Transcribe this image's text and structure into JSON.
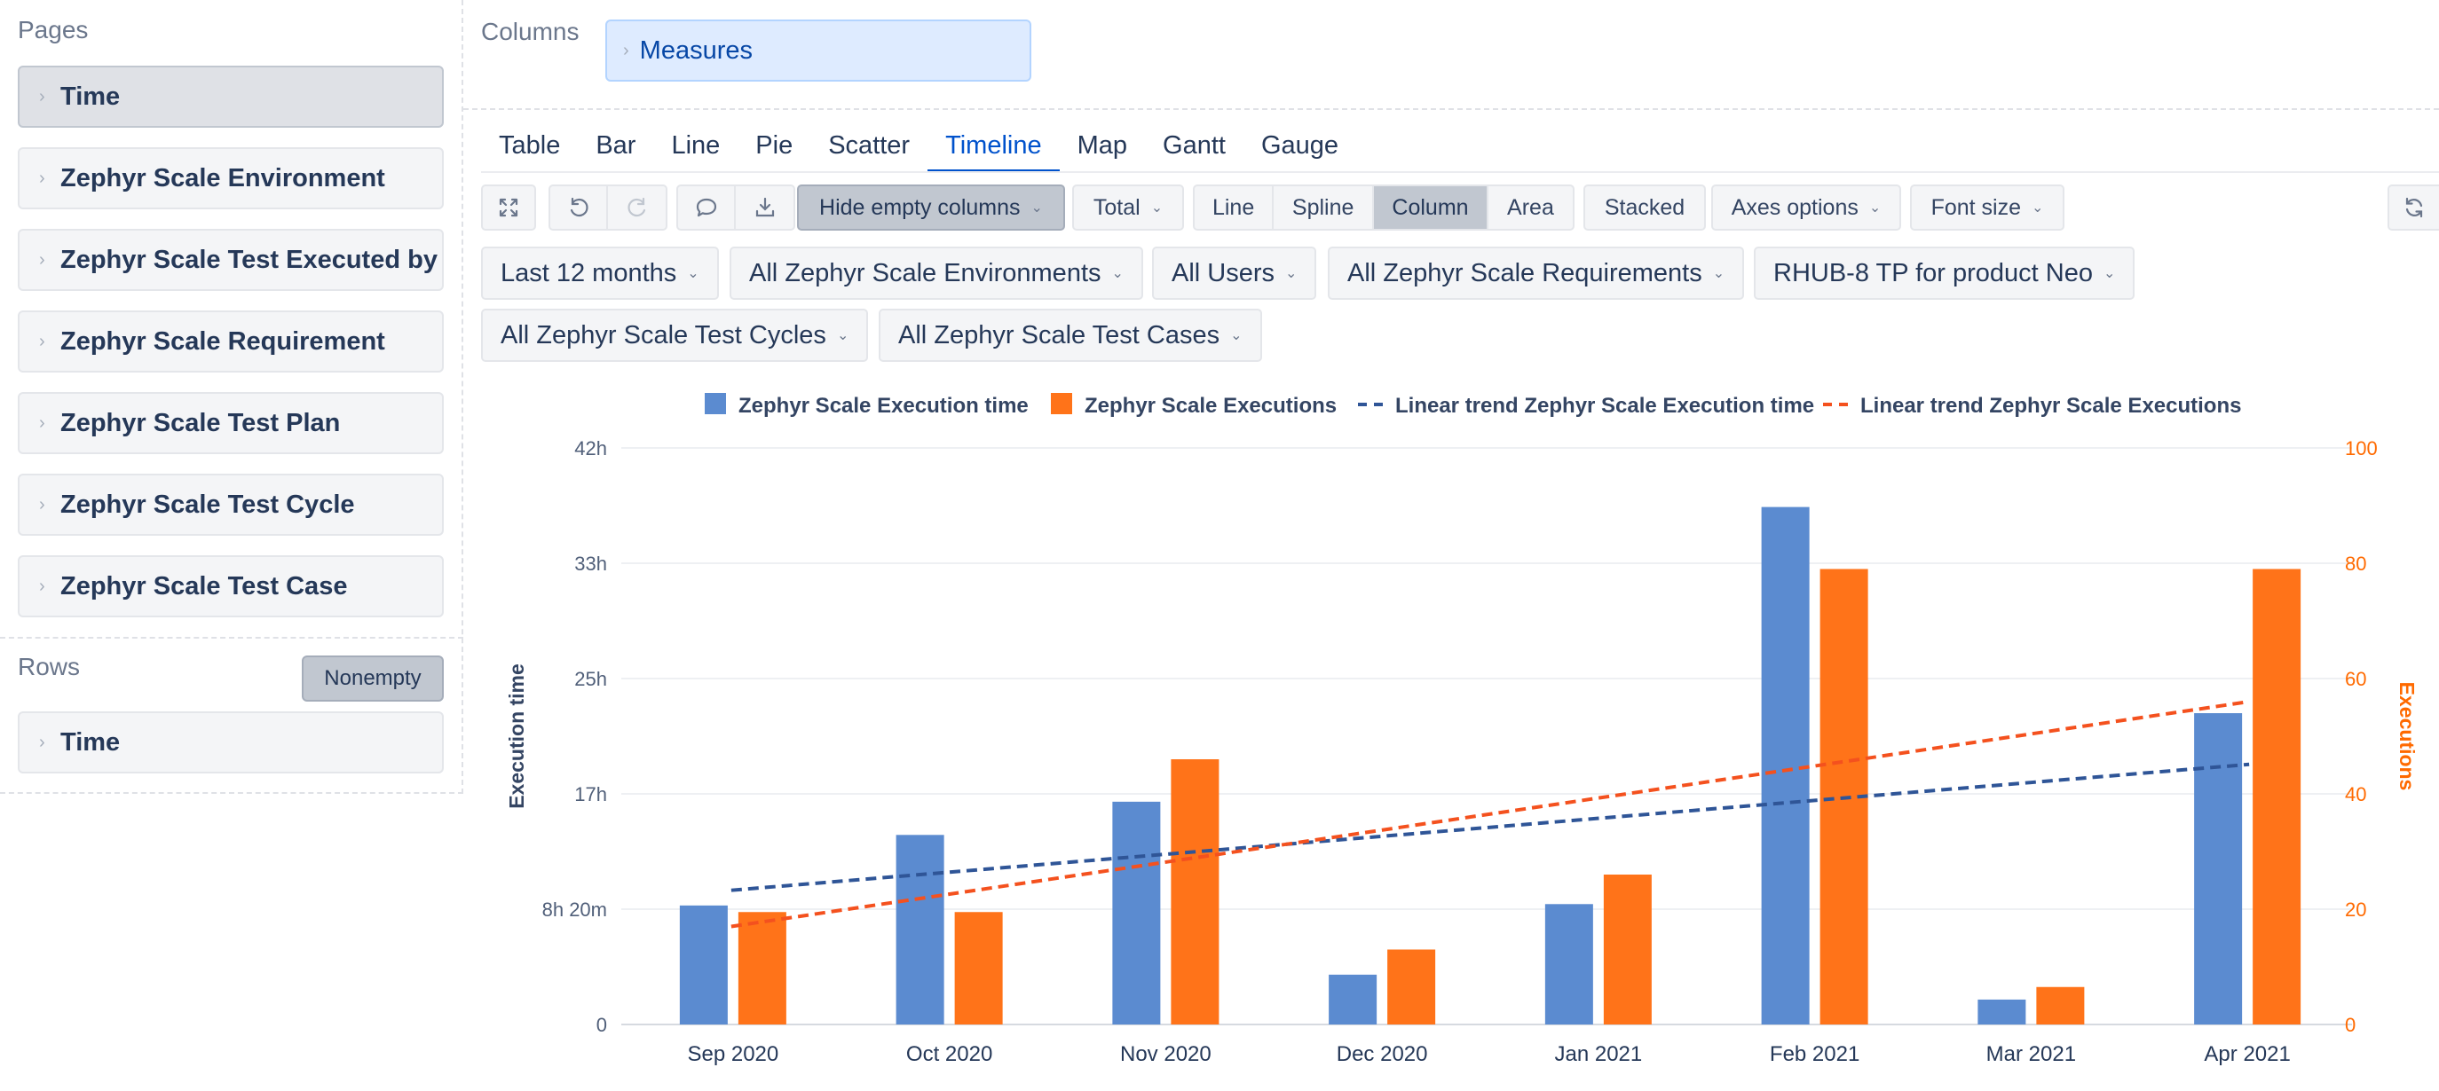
{
  "pages": {
    "label": "Pages",
    "items": [
      {
        "label": "Time"
      },
      {
        "label": "Zephyr Scale Environment"
      },
      {
        "label": "Zephyr Scale Test Executed by"
      },
      {
        "label": "Zephyr Scale Requirement"
      },
      {
        "label": "Zephyr Scale Test Plan"
      },
      {
        "label": "Zephyr Scale Test Cycle"
      },
      {
        "label": "Zephyr Scale Test Case"
      }
    ]
  },
  "rows": {
    "label": "Rows",
    "nonempty_label": "Nonempty",
    "items": [
      {
        "label": "Time"
      }
    ]
  },
  "columns": {
    "label": "Columns",
    "items": [
      {
        "label": "Measures"
      }
    ]
  },
  "tabs": [
    {
      "label": "Table"
    },
    {
      "label": "Bar"
    },
    {
      "label": "Line"
    },
    {
      "label": "Pie"
    },
    {
      "label": "Scatter"
    },
    {
      "label": "Timeline"
    },
    {
      "label": "Map"
    },
    {
      "label": "Gantt"
    },
    {
      "label": "Gauge"
    }
  ],
  "active_tab": "Timeline",
  "toolbar": {
    "icons": [
      "expand-icon",
      "undo-icon",
      "redo-icon",
      "comment-icon",
      "download-icon",
      "refresh-icon"
    ],
    "hide_empty_label": "Hide empty columns",
    "total_label": "Total",
    "chart_types": [
      "Line",
      "Spline",
      "Column",
      "Area"
    ],
    "active_chart_type": "Column",
    "stacked_label": "Stacked",
    "axes_label": "Axes options",
    "font_size_label": "Font size"
  },
  "filters": [
    {
      "label": "Last 12 months"
    },
    {
      "label": "All Zephyr Scale Environments"
    },
    {
      "label": "All Users"
    },
    {
      "label": "All Zephyr Scale Requirements"
    },
    {
      "label": "RHUB-8 TP for product Neo"
    },
    {
      "label": "All Zephyr Scale Test Cycles"
    },
    {
      "label": "All Zephyr Scale Test Cases"
    }
  ],
  "colors": {
    "execution_time": "#5b8bd0",
    "executions": "#ff7319",
    "trend_execution_time": "#2f5597",
    "trend_executions": "#f4511e",
    "right_axis_text": "#ff6a00"
  },
  "chart_data": {
    "type": "bar",
    "categories": [
      "Sep 2020",
      "Oct 2020",
      "Nov 2020",
      "Dec 2020",
      "Jan 2021",
      "Feb 2021",
      "Mar 2021",
      "Apr 2021"
    ],
    "series": [
      {
        "name": "Zephyr Scale Execution time",
        "axis": "left",
        "unit": "hours",
        "values": [
          8.6,
          13.7,
          16.1,
          3.6,
          8.7,
          37.4,
          1.8,
          22.5
        ]
      },
      {
        "name": "Zephyr Scale Executions",
        "axis": "right",
        "values": [
          19.5,
          19.5,
          46,
          13,
          26,
          79,
          6.5,
          79
        ]
      }
    ],
    "trend_lines": [
      {
        "name": "Linear trend Zephyr Scale Execution time",
        "axis": "left",
        "start": 9.7,
        "end": 18.8
      },
      {
        "name": "Linear trend Zephyr Scale Executions",
        "axis": "right",
        "start": 17,
        "end": 56
      }
    ],
    "y_left": {
      "label": "Execution time",
      "ticks": [
        "0",
        "8h 20m",
        "17h",
        "25h",
        "33h",
        "42h"
      ],
      "range_hours": [
        0,
        41.67
      ]
    },
    "y_right": {
      "label": "Executions",
      "ticks": [
        "0",
        "20",
        "40",
        "60",
        "80",
        "100"
      ],
      "range": [
        0,
        100
      ]
    },
    "legend_placement": "top",
    "grid": true
  }
}
